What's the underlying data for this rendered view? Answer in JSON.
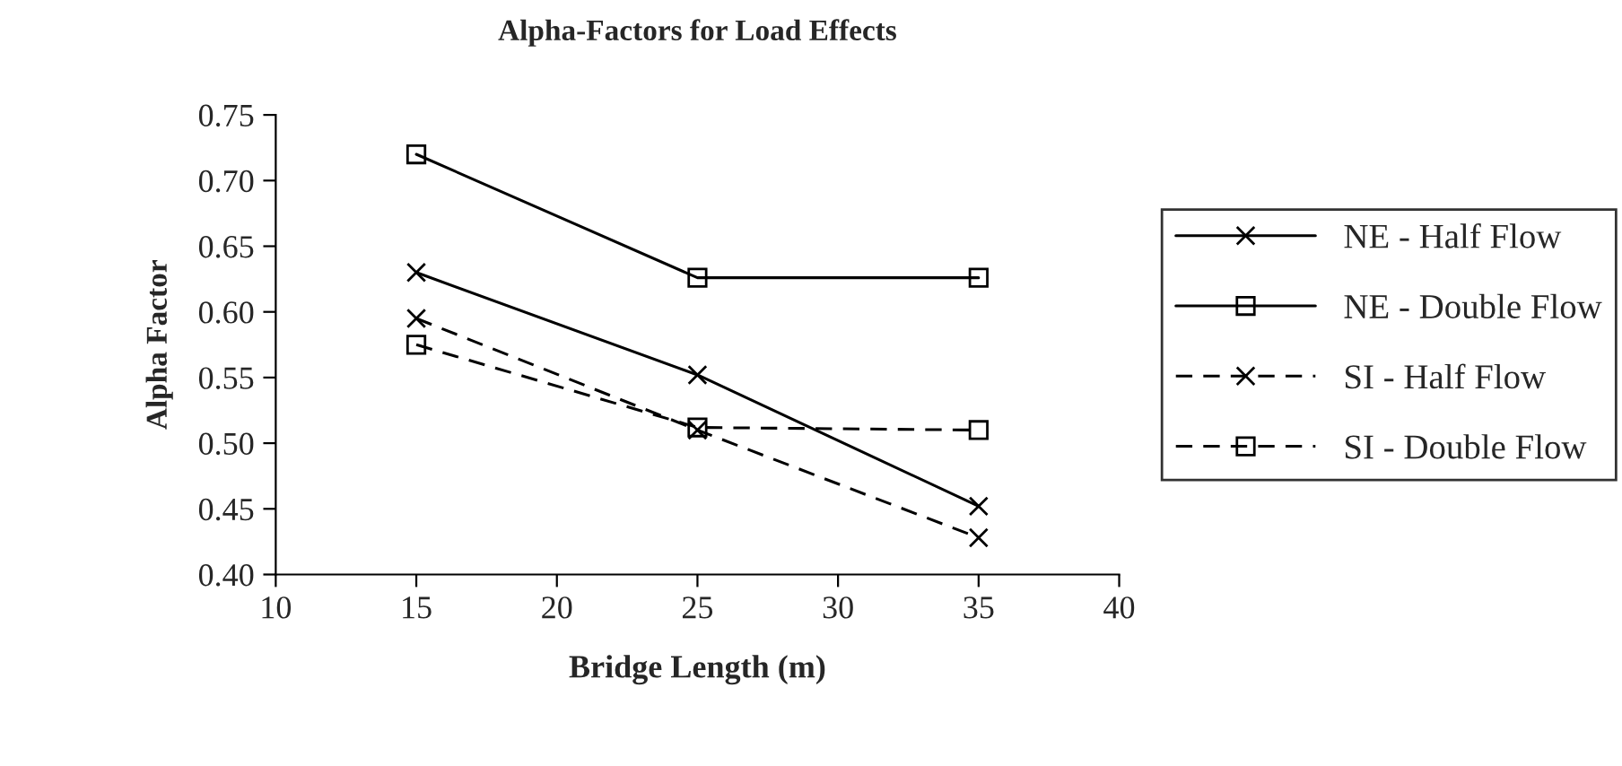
{
  "chart_data": {
    "type": "line",
    "title": "Alpha-Factors for Load Effects",
    "xlabel": "Bridge Length (m)",
    "ylabel": "Alpha Factor",
    "x": [
      15,
      25,
      35
    ],
    "xlim": [
      10,
      40
    ],
    "xticks": [
      10,
      15,
      20,
      25,
      30,
      35,
      40
    ],
    "ylim": [
      0.4,
      0.75
    ],
    "yticks": [
      {
        "value": 0.4,
        "label": "0.40"
      },
      {
        "value": 0.45,
        "label": "0.45"
      },
      {
        "value": 0.5,
        "label": "0.50"
      },
      {
        "value": 0.55,
        "label": "0.55"
      },
      {
        "value": 0.6,
        "label": "0.60"
      },
      {
        "value": 0.65,
        "label": "0.65"
      },
      {
        "value": 0.7,
        "label": "0.70"
      },
      {
        "value": 0.75,
        "label": "0.75"
      }
    ],
    "grid": false,
    "legend": "right",
    "series": [
      {
        "name": "NE - Half Flow",
        "color": "#000000",
        "marker": "cross",
        "line_style": "solid",
        "values": [
          0.63,
          0.552,
          0.452
        ]
      },
      {
        "name": "NE - Double Flow",
        "color": "#000000",
        "marker": "square",
        "line_style": "solid",
        "values": [
          0.72,
          0.626,
          0.626
        ]
      },
      {
        "name": "SI - Half Flow",
        "color": "#000000",
        "marker": "cross",
        "line_style": "dashed",
        "values": [
          0.595,
          0.51,
          0.428
        ]
      },
      {
        "name": "SI - Double Flow",
        "color": "#000000",
        "marker": "square",
        "line_style": "dashed",
        "values": [
          0.575,
          0.512,
          0.51
        ]
      }
    ]
  }
}
